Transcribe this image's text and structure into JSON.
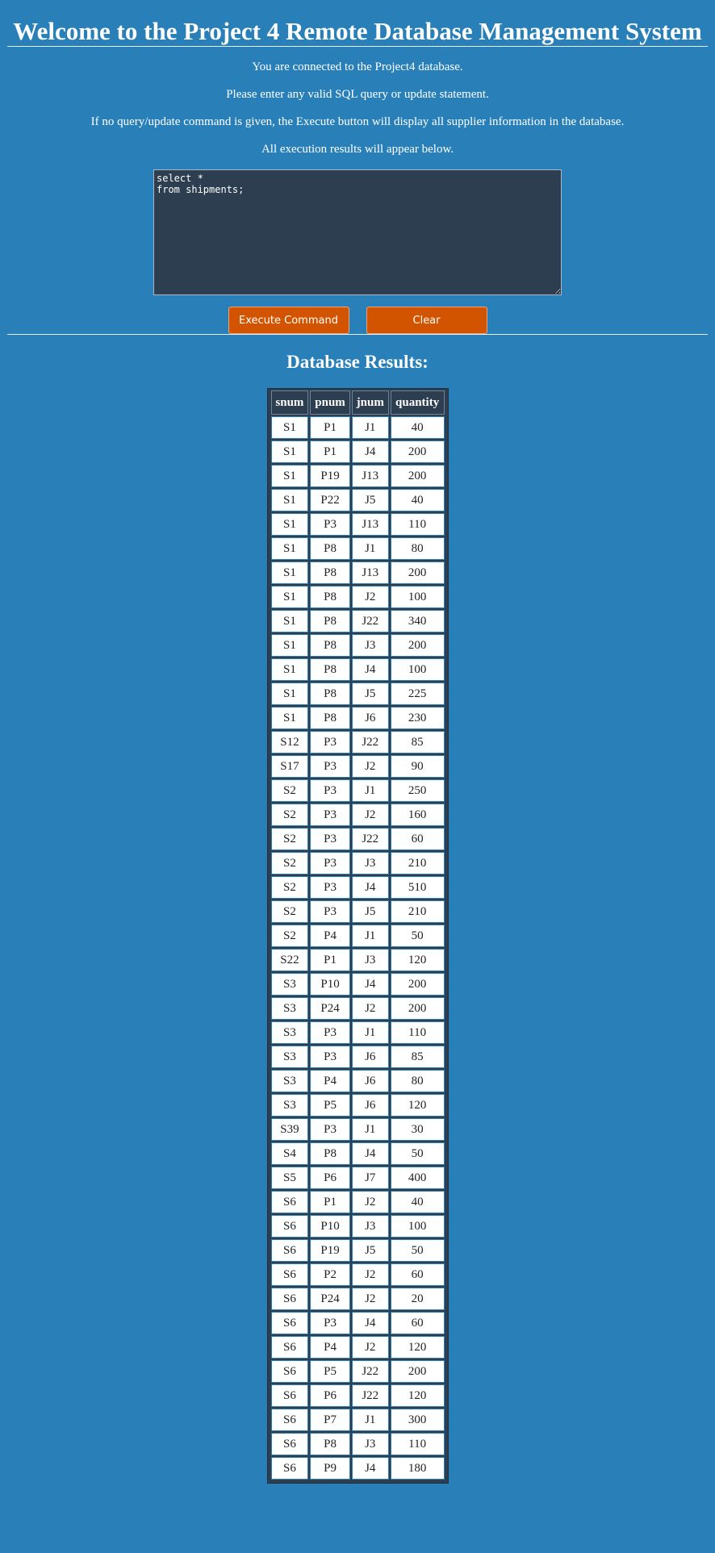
{
  "header": {
    "title": "Welcome to the Project 4 Remote Database Management System"
  },
  "info": {
    "line1": "You are connected to the Project4 database.",
    "line2": "Please enter any valid SQL query or update statement.",
    "line3": "If no query/update command is given, the Execute button will display all supplier information in the database.",
    "line4": "All execution results will appear below."
  },
  "query": {
    "value": "select *\nfrom shipments;"
  },
  "buttons": {
    "execute_label": "Execute Command",
    "clear_label": "Clear"
  },
  "results": {
    "title": "Database Results:",
    "columns": [
      "snum",
      "pnum",
      "jnum",
      "quantity"
    ],
    "rows": [
      [
        "S1",
        "P1",
        "J1",
        "40"
      ],
      [
        "S1",
        "P1",
        "J4",
        "200"
      ],
      [
        "S1",
        "P19",
        "J13",
        "200"
      ],
      [
        "S1",
        "P22",
        "J5",
        "40"
      ],
      [
        "S1",
        "P3",
        "J13",
        "110"
      ],
      [
        "S1",
        "P8",
        "J1",
        "80"
      ],
      [
        "S1",
        "P8",
        "J13",
        "200"
      ],
      [
        "S1",
        "P8",
        "J2",
        "100"
      ],
      [
        "S1",
        "P8",
        "J22",
        "340"
      ],
      [
        "S1",
        "P8",
        "J3",
        "200"
      ],
      [
        "S1",
        "P8",
        "J4",
        "100"
      ],
      [
        "S1",
        "P8",
        "J5",
        "225"
      ],
      [
        "S1",
        "P8",
        "J6",
        "230"
      ],
      [
        "S12",
        "P3",
        "J22",
        "85"
      ],
      [
        "S17",
        "P3",
        "J2",
        "90"
      ],
      [
        "S2",
        "P3",
        "J1",
        "250"
      ],
      [
        "S2",
        "P3",
        "J2",
        "160"
      ],
      [
        "S2",
        "P3",
        "J22",
        "60"
      ],
      [
        "S2",
        "P3",
        "J3",
        "210"
      ],
      [
        "S2",
        "P3",
        "J4",
        "510"
      ],
      [
        "S2",
        "P3",
        "J5",
        "210"
      ],
      [
        "S2",
        "P4",
        "J1",
        "50"
      ],
      [
        "S22",
        "P1",
        "J3",
        "120"
      ],
      [
        "S3",
        "P10",
        "J4",
        "200"
      ],
      [
        "S3",
        "P24",
        "J2",
        "200"
      ],
      [
        "S3",
        "P3",
        "J1",
        "110"
      ],
      [
        "S3",
        "P3",
        "J6",
        "85"
      ],
      [
        "S3",
        "P4",
        "J6",
        "80"
      ],
      [
        "S3",
        "P5",
        "J6",
        "120"
      ],
      [
        "S39",
        "P3",
        "J1",
        "30"
      ],
      [
        "S4",
        "P8",
        "J4",
        "50"
      ],
      [
        "S5",
        "P6",
        "J7",
        "400"
      ],
      [
        "S6",
        "P1",
        "J2",
        "40"
      ],
      [
        "S6",
        "P10",
        "J3",
        "100"
      ],
      [
        "S6",
        "P19",
        "J5",
        "50"
      ],
      [
        "S6",
        "P2",
        "J2",
        "60"
      ],
      [
        "S6",
        "P24",
        "J2",
        "20"
      ],
      [
        "S6",
        "P3",
        "J4",
        "60"
      ],
      [
        "S6",
        "P4",
        "J2",
        "120"
      ],
      [
        "S6",
        "P5",
        "J22",
        "200"
      ],
      [
        "S6",
        "P6",
        "J22",
        "120"
      ],
      [
        "S6",
        "P7",
        "J1",
        "300"
      ],
      [
        "S6",
        "P8",
        "J3",
        "110"
      ],
      [
        "S6",
        "P9",
        "J4",
        "180"
      ]
    ]
  }
}
